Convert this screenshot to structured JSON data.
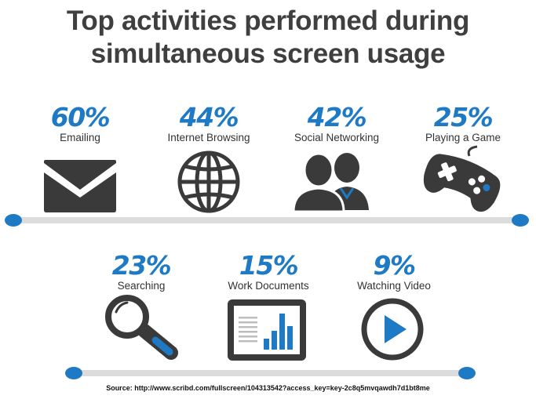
{
  "title_line1": "Top activities performed during",
  "title_line2": "simultaneous screen usage",
  "colors": {
    "accent": "#1e7ac4",
    "dark": "#3a3a3a",
    "track": "#dcdcdc"
  },
  "activities": [
    {
      "pct": "60%",
      "label": "Emailing",
      "icon": "envelope-icon"
    },
    {
      "pct": "44%",
      "label": "Internet Browsing",
      "icon": "globe-icon"
    },
    {
      "pct": "42%",
      "label": "Social Networking",
      "icon": "people-icon"
    },
    {
      "pct": "25%",
      "label": "Playing a Game",
      "icon": "gamepad-icon"
    },
    {
      "pct": "23%",
      "label": "Searching",
      "icon": "magnifier-icon"
    },
    {
      "pct": "15%",
      "label": "Work Documents",
      "icon": "document-chart-icon"
    },
    {
      "pct": "9%",
      "label": "Watching Video",
      "icon": "play-icon"
    }
  ],
  "source": "Source: http://www.scribd.com/fullscreen/104313542?access_key=key-2c8q5mvqawdh7d1bt8me"
}
